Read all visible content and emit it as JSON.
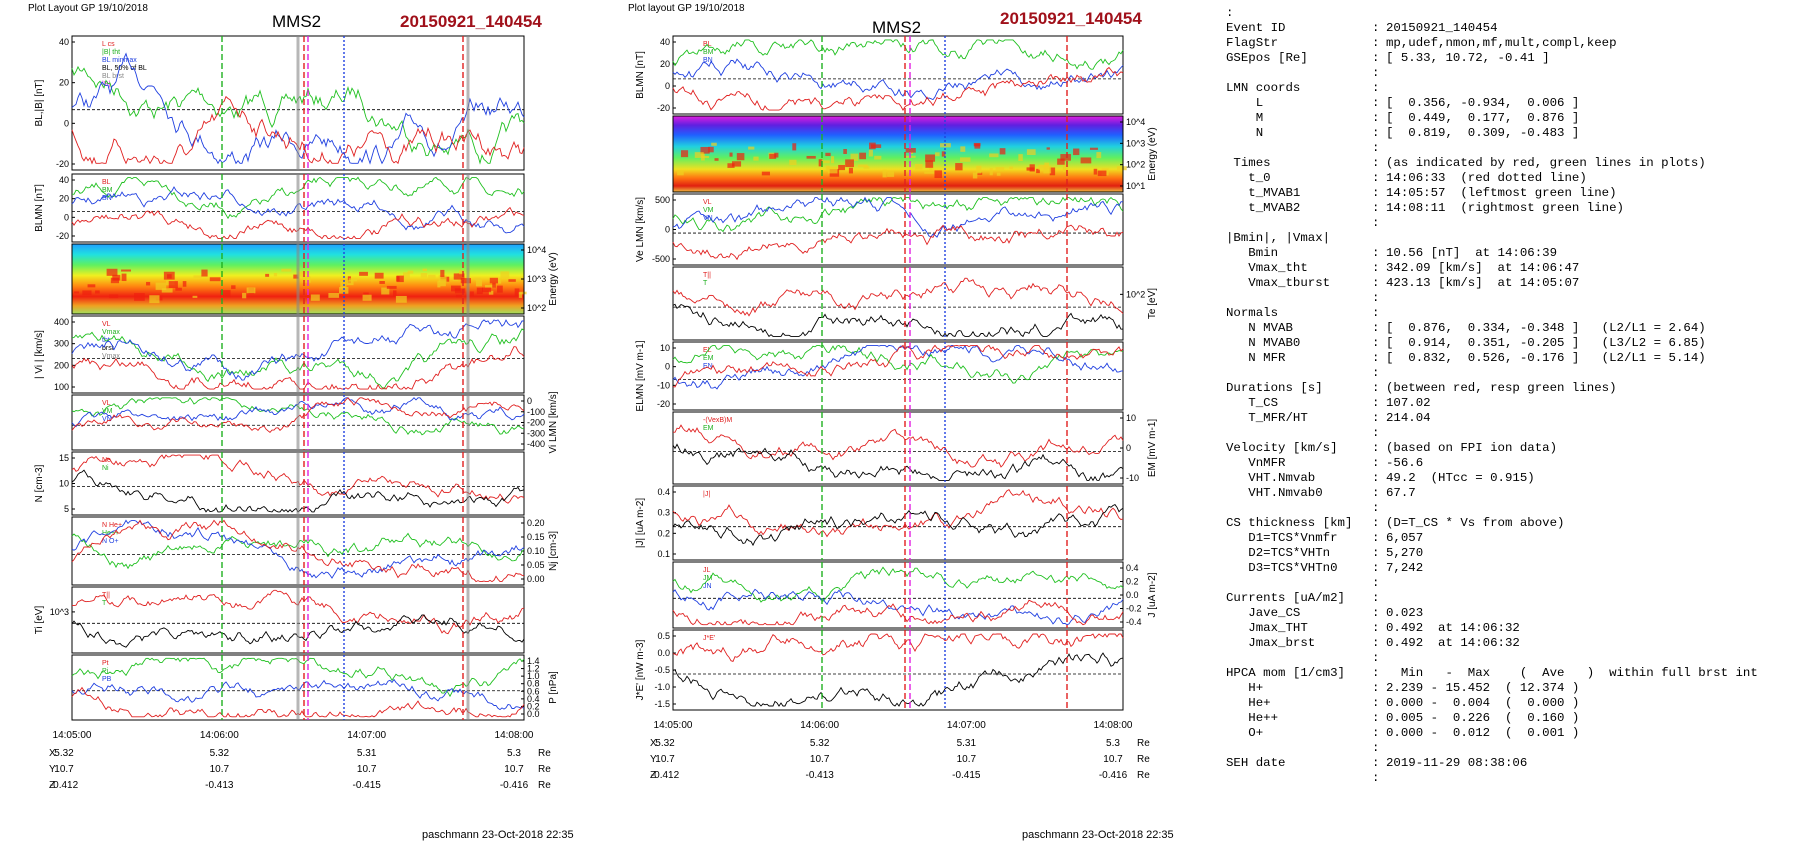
{
  "panels": [
    {
      "header": "Plot Layout GP 19/10/2018",
      "spacecraft": "MMS2",
      "event": "20150921_140454",
      "footer": "paschmann 23-Oct-2018 22:35"
    },
    {
      "header": "Plot layout GP 19/10/2018",
      "spacecraft": "MMS2",
      "event": "20150921_140454",
      "footer": "paschmann 23-Oct-2018 22:35"
    }
  ],
  "colors": {
    "title_red": "#a0101a",
    "marker_red": "#e02020",
    "marker_green": "#20b020",
    "marker_magenta": "#e020e0",
    "marker_blue": "#2040e0"
  },
  "chart_data": [
    {
      "type": "line",
      "panel": "left",
      "x_ticks": [
        "14:05:00",
        "14:06:00",
        "14:07:00",
        "14:08:00"
      ],
      "position_table": {
        "rows": [
          {
            "label": "X",
            "values": [
              "5.32",
              "5.32",
              "5.31",
              "5.3"
            ],
            "unit": "Re"
          },
          {
            "label": "Y",
            "values": [
              "10.7",
              "10.7",
              "10.7",
              "10.7"
            ],
            "unit": "Re"
          },
          {
            "label": "Z",
            "values": [
              "-0.412",
              "-0.413",
              "-0.415",
              "-0.416"
            ],
            "unit": "Re"
          }
        ]
      },
      "subplots": [
        {
          "ylabel": "BL,|B| [nT]",
          "ylim": [
            -20,
            45
          ],
          "yticks": [
            "40",
            "20",
            "0",
            "-20"
          ],
          "legend": [
            "L cs",
            "|B| tht",
            "BL minmax",
            "BL, 50% of BL",
            "BL brst",
            "|B|"
          ]
        },
        {
          "ylabel": "BLMN [nT]",
          "ylim": [
            -20,
            45
          ],
          "yticks": [
            "40",
            "20",
            "0",
            "-20"
          ],
          "legend": [
            "BL",
            "BM",
            "BN"
          ]
        },
        {
          "ylabel": "Energy (eV)",
          "ylim": [
            10,
            30000
          ],
          "yticks": [
            "10^4",
            "10^3",
            "10^2"
          ],
          "kind": "spectrogram"
        },
        {
          "ylabel": "| Vi | [km/s]",
          "ylim": [
            0,
            420
          ],
          "yticks": [
            "400",
            "300",
            "200",
            "100"
          ],
          "legend": [
            "VL",
            "Vmax",
            "tht",
            "brst",
            "Vmax"
          ]
        },
        {
          "ylabel": "Vi LMN [km/s]",
          "ylim": [
            -420,
            20
          ],
          "yticks": [
            "0",
            "-100",
            "-200",
            "-300",
            "-400"
          ],
          "legend": [
            "VL",
            "VM",
            "VN"
          ]
        },
        {
          "ylabel": "N [cm-3]",
          "ylim": [
            0,
            18
          ],
          "yticks": [
            "15",
            "10",
            "5"
          ],
          "legend": [
            "Ne",
            "Ni"
          ]
        },
        {
          "ylabel": "Nj [cm-3]",
          "ylim": [
            0,
            0.2
          ],
          "yticks": [
            "0.20",
            "0.15",
            "0.10",
            "0.05",
            "0.00"
          ],
          "legend": [
            "N He+",
            "He++",
            "N O+"
          ]
        },
        {
          "ylabel": "Ti [eV]",
          "ylim": [
            300,
            1800
          ],
          "yticks": [
            "10^3"
          ],
          "legend": [
            "T||",
            "T"
          ]
        },
        {
          "ylabel": "P [nPa]",
          "ylim": [
            0,
            1.4
          ],
          "yticks": [
            "1.4",
            "1.2",
            "1.0",
            "0.8",
            "0.6",
            "0.4",
            "0.2",
            "0.0"
          ],
          "legend": [
            "Pt",
            "Pi",
            "PB"
          ]
        }
      ]
    },
    {
      "type": "line",
      "panel": "right",
      "x_ticks": [
        "14:05:00",
        "14:06:00",
        "14:07:00",
        "14:08:00"
      ],
      "position_table": {
        "rows": [
          {
            "label": "X",
            "values": [
              "5.32",
              "5.32",
              "5.31",
              "5.3"
            ],
            "unit": "Re"
          },
          {
            "label": "Y",
            "values": [
              "10.7",
              "10.7",
              "10.7",
              "10.7"
            ],
            "unit": "Re"
          },
          {
            "label": "Z",
            "values": [
              "-0.412",
              "-0.413",
              "-0.415",
              "-0.416"
            ],
            "unit": "Re"
          }
        ]
      },
      "subplots": [
        {
          "ylabel": "BLMN [nT]",
          "ylim": [
            -25,
            45
          ],
          "yticks": [
            "40",
            "20",
            "0",
            "-20"
          ],
          "legend": [
            "BL",
            "BM",
            "BN"
          ]
        },
        {
          "ylabel": "Energy (eV)",
          "ylim": [
            10,
            30000
          ],
          "yticks": [
            "10^4",
            "10^3",
            "10^2",
            "10^1"
          ],
          "kind": "spectrogram"
        },
        {
          "ylabel": "Ve LMN [km/s]",
          "ylim": [
            -600,
            600
          ],
          "yticks": [
            "500",
            "0",
            "-500"
          ],
          "legend": [
            "VL",
            "VM",
            "VN"
          ]
        },
        {
          "ylabel": "Te [eV]",
          "ylim": [
            20,
            200
          ],
          "yticks": [
            "10^2"
          ],
          "legend": [
            "T||",
            "T"
          ]
        },
        {
          "ylabel": "ELMN [mV m-1]",
          "ylim": [
            -25,
            15
          ],
          "yticks": [
            "10",
            "0",
            "-10",
            "-20"
          ],
          "legend": [
            "EL",
            "EM",
            "EN"
          ]
        },
        {
          "ylabel": "EM [mV m-1]",
          "ylim": [
            -14,
            14
          ],
          "yticks": [
            "10",
            "0",
            "-10"
          ],
          "legend": [
            "-(VexB)M",
            "EM"
          ]
        },
        {
          "ylabel": "|J| [uA m-2]",
          "ylim": [
            0,
            0.45
          ],
          "yticks": [
            "0.4",
            "0.3",
            "0.2",
            "0.1"
          ],
          "legend": [
            "|J|"
          ]
        },
        {
          "ylabel": "J [uA m-2]",
          "ylim": [
            -0.45,
            0.45
          ],
          "yticks": [
            "0.4",
            "0.2",
            "0.0",
            "-0.2",
            "-0.4"
          ],
          "legend": [
            "JL",
            "JM",
            "JN"
          ]
        },
        {
          "ylabel": "J*E' [nW m-3]",
          "ylim": [
            -1.9,
            0.6
          ],
          "yticks": [
            "0.5",
            "0.0",
            "-0.5",
            "-1.0",
            "-1.5"
          ],
          "legend": [
            "J*E'"
          ]
        }
      ]
    }
  ],
  "info": {
    "lines": [
      {
        "k": "Event ID",
        "c": ":",
        "v": "20150921_140454"
      },
      {
        "k": "FlagStr",
        "c": ":",
        "v": "mp,udef,nmon,mf,mult,compl,keep"
      },
      {
        "k": "GSEpos [Re]",
        "c": ":",
        "v": "[ 5.33, 10.72, -0.41 ]"
      },
      {
        "k": "",
        "c": ":",
        "v": ""
      },
      {
        "k": "LMN coords",
        "c": ":",
        "v": ""
      },
      {
        "k": "    L",
        "c": ":",
        "v": "[  0.356, -0.934,  0.006 ]"
      },
      {
        "k": "    M",
        "c": ":",
        "v": "[  0.449,  0.177,  0.876 ]"
      },
      {
        "k": "    N",
        "c": ":",
        "v": "[  0.819,  0.309, -0.483 ]"
      },
      {
        "k": "",
        "c": ":",
        "v": ""
      },
      {
        "k": " Times",
        "c": ":",
        "v": "(as indicated by red, green lines in plots)"
      },
      {
        "k": "   t_0",
        "c": ":",
        "v": "14:06:33  (red dotted line)"
      },
      {
        "k": "   t_MVAB1",
        "c": ":",
        "v": "14:05:57  (leftmost green line)"
      },
      {
        "k": "   t_MVAB2",
        "c": ":",
        "v": "14:08:11  (rightmost green line)"
      },
      {
        "k": "",
        "c": ":",
        "v": ""
      },
      {
        "k": "|Bmin|, |Vmax|",
        "c": "",
        "v": ""
      },
      {
        "k": "   Bmin",
        "c": ":",
        "v": "10.56 [nT]  at 14:06:39"
      },
      {
        "k": "   Vmax_tht",
        "c": ":",
        "v": "342.09 [km/s]  at 14:06:47"
      },
      {
        "k": "   Vmax_tburst",
        "c": ":",
        "v": "423.13 [km/s]  at 14:05:07"
      },
      {
        "k": "",
        "c": ":",
        "v": ""
      },
      {
        "k": "Normals",
        "c": ":",
        "v": ""
      },
      {
        "k": "   N MVAB",
        "c": ":",
        "v": "[  0.876,  0.334, -0.348 ]   (L2/L1 = 2.64)"
      },
      {
        "k": "   N MVAB0",
        "c": ":",
        "v": "[  0.914,  0.351, -0.205 ]   (L3/L2 = 6.85)"
      },
      {
        "k": "   N MFR",
        "c": ":",
        "v": "[  0.832,  0.526, -0.176 ]   (L2/L1 = 5.14)"
      },
      {
        "k": "",
        "c": ":",
        "v": ""
      },
      {
        "k": "Durations [s]",
        "c": ":",
        "v": "(between red, resp green lines)"
      },
      {
        "k": "   T_CS",
        "c": ":",
        "v": "107.02"
      },
      {
        "k": "   T_MFR/HT",
        "c": ":",
        "v": "214.04"
      },
      {
        "k": "",
        "c": ":",
        "v": ""
      },
      {
        "k": "Velocity [km/s]",
        "c": ":",
        "v": "(based on FPI ion data)"
      },
      {
        "k": "   VnMFR",
        "c": ":",
        "v": "-56.6"
      },
      {
        "k": "   VHT.Nmvab",
        "c": ":",
        "v": "49.2  (HTcc = 0.915)"
      },
      {
        "k": "   VHT.Nmvab0",
        "c": ":",
        "v": "67.7"
      },
      {
        "k": "",
        "c": ":",
        "v": ""
      },
      {
        "k": "CS thickness [km]",
        "c": ":",
        "v": "(D=T_CS * Vs from above)"
      },
      {
        "k": "   D1=TCS*Vnmfr",
        "c": ":",
        "v": "6,057"
      },
      {
        "k": "   D2=TCS*VHTn",
        "c": ":",
        "v": "5,270"
      },
      {
        "k": "   D3=TCS*VHTn0",
        "c": ":",
        "v": "7,242"
      },
      {
        "k": "",
        "c": ":",
        "v": ""
      },
      {
        "k": "Currents [uA/m2]",
        "c": ":",
        "v": ""
      },
      {
        "k": "   Jave_CS",
        "c": ":",
        "v": "0.023"
      },
      {
        "k": "   Jmax_THT",
        "c": ":",
        "v": "0.492  at 14:06:32"
      },
      {
        "k": "   Jmax_brst",
        "c": ":",
        "v": "0.492  at 14:06:32"
      },
      {
        "k": "",
        "c": ":",
        "v": ""
      },
      {
        "k": "HPCA mom [1/cm3]",
        "c": ":",
        "v": "  Min   -  Max    (  Ave   )  within full brst int"
      },
      {
        "k": "   H+",
        "c": ":",
        "v": "2.239 - 15.452  ( 12.374 )"
      },
      {
        "k": "   He+",
        "c": ":",
        "v": "0.000 -  0.004  (  0.000 )"
      },
      {
        "k": "   He++",
        "c": ":",
        "v": "0.005 -  0.226  (  0.160 )"
      },
      {
        "k": "   O+",
        "c": ":",
        "v": "0.000 -  0.012  (  0.001 )"
      },
      {
        "k": "",
        "c": ":",
        "v": ""
      },
      {
        "k": "SEH date",
        "c": ":",
        "v": "2019-11-29 08:38:06"
      },
      {
        "k": "",
        "c": ":",
        "v": ""
      }
    ]
  }
}
